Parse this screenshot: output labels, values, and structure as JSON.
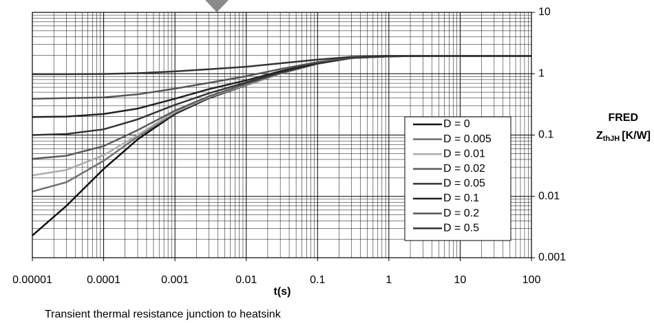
{
  "chart_data": {
    "type": "line",
    "x_label": "t(s)",
    "y_label": {
      "line1": "FRED",
      "main": "Z",
      "sub": "thJH",
      "unit": "[K/W]"
    },
    "caption": "Transient thermal resistance junction to heatsink",
    "x": [
      1e-05,
      3e-05,
      0.0001,
      0.0003,
      0.001,
      0.003,
      0.01,
      0.03,
      0.1,
      0.3,
      1,
      3,
      10,
      100
    ],
    "xlim": [
      1e-05,
      100
    ],
    "xticks": [
      1e-05,
      0.0001,
      0.001,
      0.01,
      0.1,
      1,
      10,
      100
    ],
    "ylim": [
      0.001,
      10
    ],
    "yticks": [
      10,
      1,
      0.1,
      0.01,
      0.001
    ],
    "log_x": true,
    "log_y": true,
    "grid": true,
    "minor_grid": true,
    "legend": "right",
    "series": [
      {
        "name": "D = 0",
        "color": "#111111",
        "values": [
          0.0023,
          0.007,
          0.028,
          0.085,
          0.22,
          0.4,
          0.65,
          1.0,
          1.45,
          1.8,
          1.92,
          1.95,
          1.95,
          1.95
        ]
      },
      {
        "name": "D = 0.005",
        "color": "#6e6e6e",
        "values": [
          0.012,
          0.017,
          0.038,
          0.094,
          0.23,
          0.41,
          0.66,
          1.0,
          1.45,
          1.8,
          1.92,
          1.95,
          1.95,
          1.95
        ]
      },
      {
        "name": "D = 0.01",
        "color": "#aaaaaa",
        "values": [
          0.022,
          0.027,
          0.047,
          0.1,
          0.24,
          0.42,
          0.66,
          1.0,
          1.45,
          1.8,
          1.92,
          1.95,
          1.95,
          1.95
        ]
      },
      {
        "name": "D = 0.02",
        "color": "#5a5a5a",
        "values": [
          0.041,
          0.046,
          0.066,
          0.12,
          0.25,
          0.43,
          0.68,
          1.02,
          1.46,
          1.8,
          1.92,
          1.95,
          1.95,
          1.95
        ]
      },
      {
        "name": "D = 0.05",
        "color": "#333333",
        "values": [
          0.1,
          0.104,
          0.124,
          0.18,
          0.31,
          0.48,
          0.72,
          1.05,
          1.48,
          1.81,
          1.92,
          1.95,
          1.95,
          1.95
        ]
      },
      {
        "name": "D = 0.1",
        "color": "#222222",
        "values": [
          0.197,
          0.2,
          0.22,
          0.27,
          0.39,
          0.56,
          0.78,
          1.1,
          1.5,
          1.82,
          1.92,
          1.95,
          1.95,
          1.95
        ]
      },
      {
        "name": "D = 0.2",
        "color": "#555555",
        "values": [
          0.39,
          0.4,
          0.41,
          0.46,
          0.57,
          0.71,
          0.91,
          1.19,
          1.55,
          1.83,
          1.93,
          1.95,
          1.95,
          1.95
        ]
      },
      {
        "name": "D = 0.5",
        "color": "#333333",
        "values": [
          0.98,
          0.98,
          0.99,
          1.02,
          1.09,
          1.18,
          1.3,
          1.48,
          1.7,
          1.88,
          1.94,
          1.95,
          1.95,
          1.95
        ]
      }
    ]
  }
}
